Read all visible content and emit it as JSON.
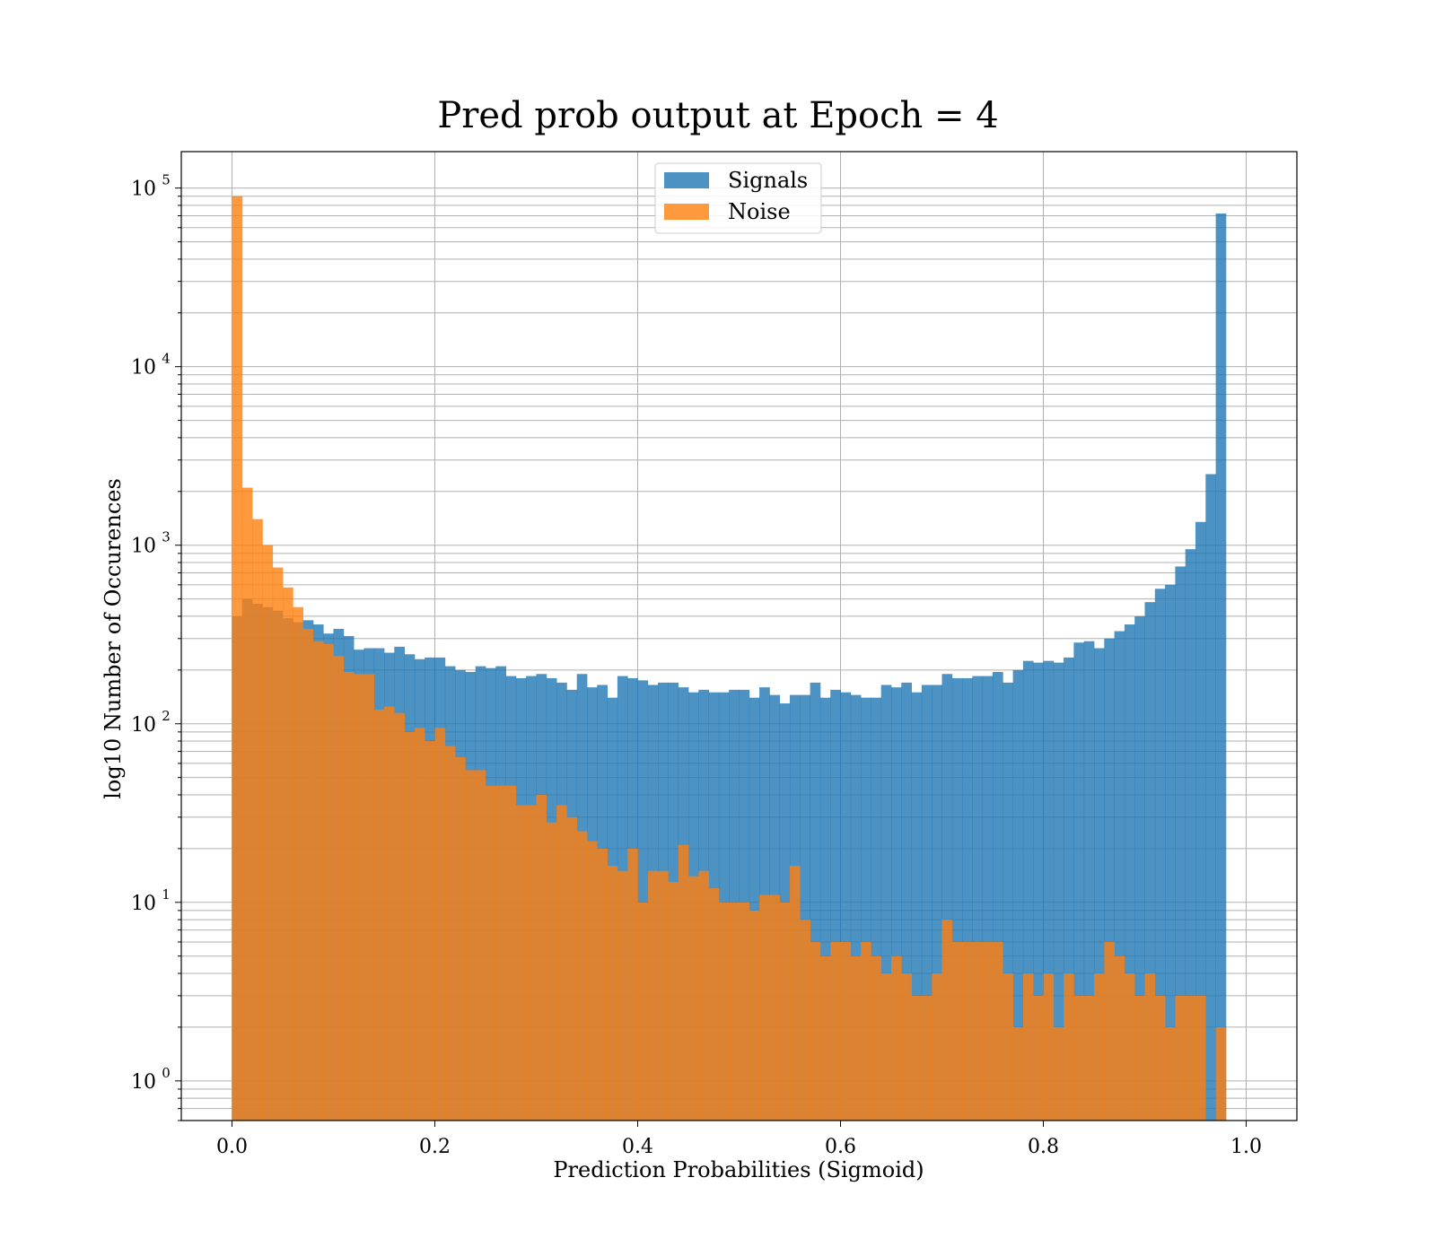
{
  "chart_data": {
    "type": "bar",
    "title": "Pred prob output at Epoch = 4",
    "xlabel": "Prediction Probabilities (Sigmoid)",
    "ylabel": "log10 Number of Occurences",
    "xlim": [
      -0.05,
      1.05
    ],
    "ylim": [
      0.6,
      160000
    ],
    "yscale": "log",
    "grid": true,
    "legend": "upper-center",
    "bins": 100,
    "bin_range": [
      0.0,
      1.0
    ],
    "x_ticks": [
      "0.0",
      "0.2",
      "0.4",
      "0.6",
      "0.8",
      "1.0"
    ],
    "x_tick_values": [
      0.0,
      0.2,
      0.4,
      0.6,
      0.8,
      1.0
    ],
    "y_ticks": [
      {
        "base": "10",
        "exp": "0",
        "value": 1
      },
      {
        "base": "10",
        "exp": "1",
        "value": 10
      },
      {
        "base": "10",
        "exp": "2",
        "value": 100
      },
      {
        "base": "10",
        "exp": "3",
        "value": 1000
      },
      {
        "base": "10",
        "exp": "4",
        "value": 10000
      },
      {
        "base": "10",
        "exp": "5",
        "value": 100000
      }
    ],
    "series": [
      {
        "name": "Signals",
        "color": "#1f77b4",
        "values": [
          400,
          500,
          470,
          450,
          430,
          390,
          370,
          380,
          360,
          320,
          340,
          310,
          260,
          265,
          265,
          250,
          270,
          245,
          230,
          235,
          235,
          210,
          200,
          195,
          210,
          205,
          210,
          185,
          180,
          185,
          190,
          180,
          170,
          155,
          190,
          160,
          165,
          140,
          185,
          180,
          175,
          165,
          170,
          170,
          160,
          150,
          155,
          150,
          150,
          155,
          155,
          140,
          160,
          145,
          130,
          145,
          145,
          170,
          140,
          155,
          150,
          145,
          140,
          140,
          165,
          160,
          170,
          150,
          165,
          165,
          190,
          180,
          180,
          185,
          185,
          195,
          170,
          200,
          225,
          220,
          225,
          220,
          235,
          285,
          290,
          265,
          300,
          330,
          360,
          400,
          480,
          570,
          600,
          760,
          950,
          1350,
          2500,
          72000,
          0,
          0
        ]
      },
      {
        "name": "Noise",
        "color": "#ff7f0e",
        "values": [
          90000,
          2100,
          1400,
          1000,
          750,
          580,
          450,
          340,
          290,
          280,
          240,
          195,
          190,
          190,
          120,
          125,
          115,
          90,
          95,
          80,
          95,
          75,
          65,
          55,
          55,
          45,
          45,
          45,
          35,
          35,
          40,
          28,
          35,
          30,
          25,
          22,
          20,
          16,
          15,
          20,
          10,
          15,
          15,
          13,
          21,
          14,
          15,
          12,
          10,
          10,
          10,
          9,
          11,
          11,
          10,
          16,
          8,
          6,
          5,
          6,
          6,
          5,
          6,
          5,
          4,
          5,
          4,
          3,
          3,
          4,
          8,
          6,
          6,
          6,
          6,
          6,
          4,
          2,
          4,
          3,
          4,
          2,
          4,
          3,
          3,
          4,
          6,
          5,
          4,
          3,
          4,
          3,
          2,
          3,
          3,
          3,
          0,
          2,
          0,
          0
        ]
      }
    ]
  }
}
